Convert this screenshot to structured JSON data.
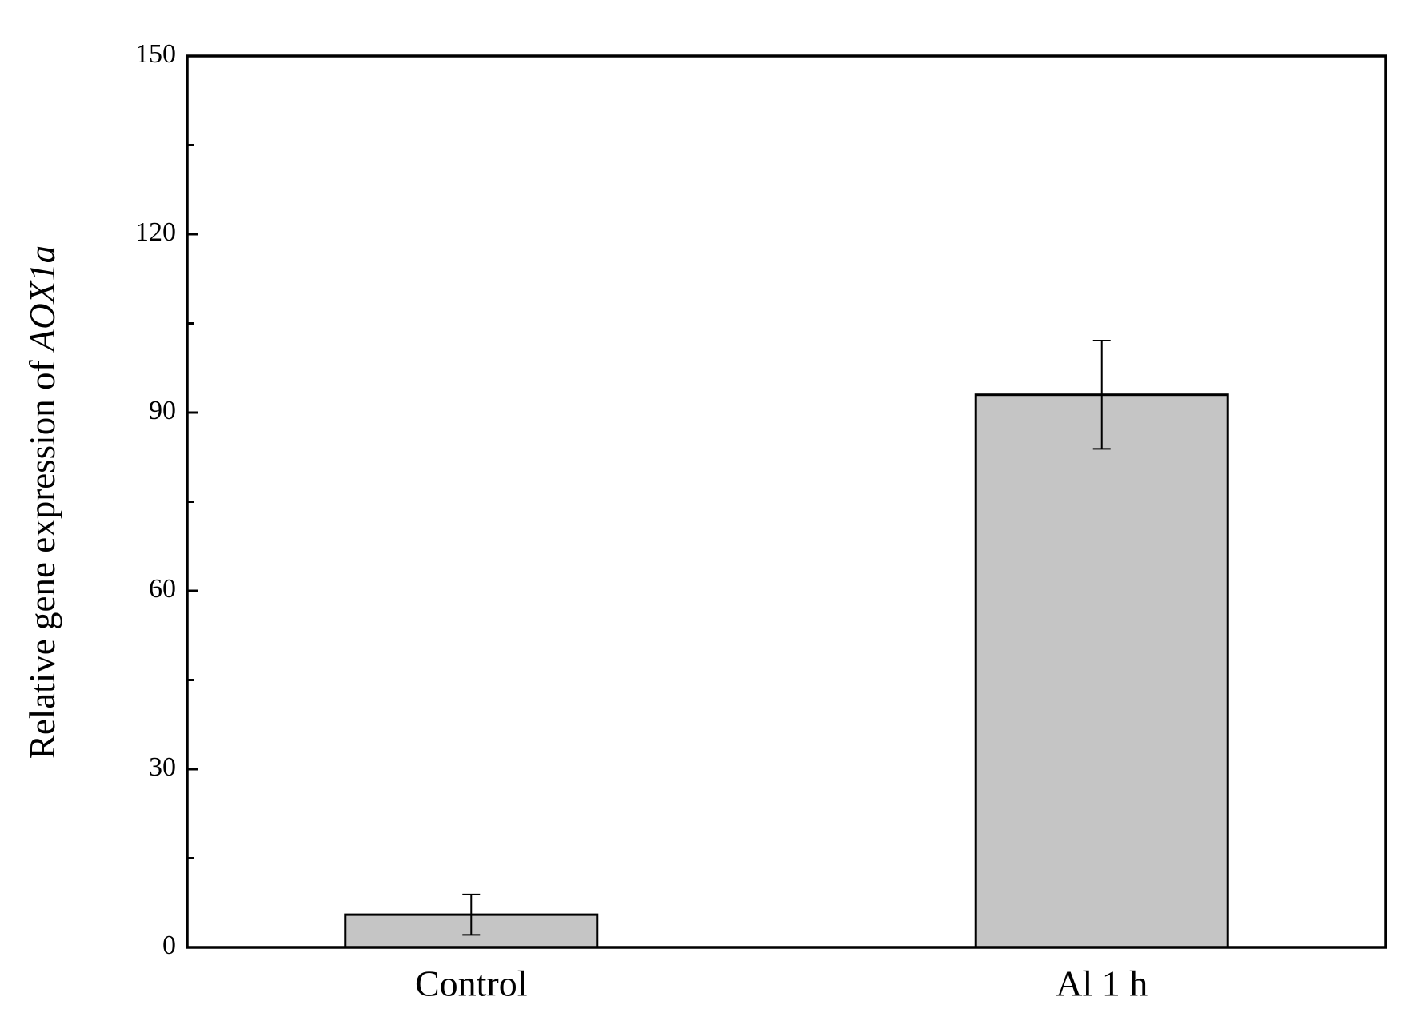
{
  "chart_data": {
    "type": "bar",
    "y_label": [
      "Relative gene expression of ",
      "AOX1a"
    ],
    "categories": [
      "Control",
      "Al 1 h"
    ],
    "values": [
      5.5,
      93.0
    ],
    "errors": [
      3.4,
      9.1
    ],
    "color": "#c5c5c5",
    "ylim": [
      0,
      150
    ],
    "yticks": [
      0,
      30,
      60,
      90,
      120,
      150
    ],
    "grid": false
  }
}
